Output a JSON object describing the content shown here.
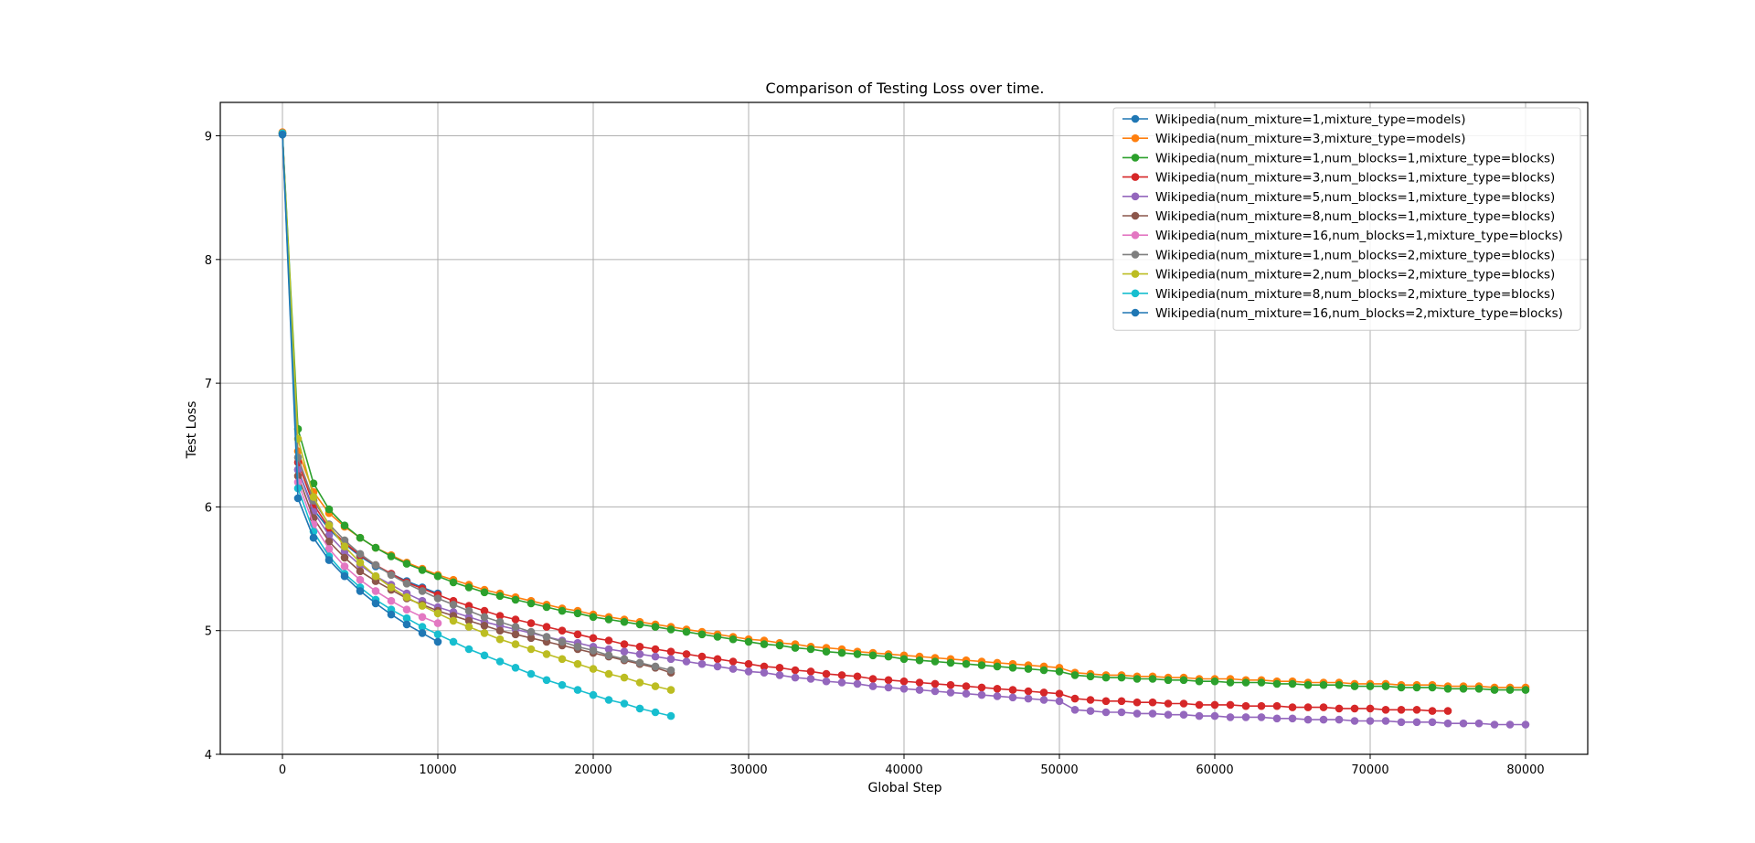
{
  "chart_data": {
    "type": "line",
    "title": "Comparison of Testing Loss over time.",
    "xlabel": "Global Step",
    "ylabel": "Test Loss",
    "xlim": [
      -4000,
      84000
    ],
    "ylim": [
      4,
      9.27
    ],
    "xticks": [
      0,
      10000,
      20000,
      30000,
      40000,
      50000,
      60000,
      70000,
      80000
    ],
    "yticks": [
      4,
      5,
      6,
      7,
      8,
      9
    ],
    "grid": true,
    "legend_position": "top-right",
    "series": [
      {
        "name": "Wikipedia(num_mixture=1,mixture_type=models)",
        "color": "#1f77b4",
        "x": [
          0,
          1000,
          2000,
          3000,
          4000,
          5000,
          6000,
          7000,
          8000,
          9000,
          10000
        ],
        "y": [
          9.02,
          6.3,
          5.98,
          5.82,
          5.7,
          5.6,
          5.52,
          5.46,
          5.4,
          5.35,
          5.3
        ]
      },
      {
        "name": "Wikipedia(num_mixture=3,mixture_type=models)",
        "color": "#ff7f0e",
        "x": [
          0,
          1000,
          2000,
          3000,
          4000,
          5000,
          6000,
          7000,
          8000,
          9000,
          10000,
          11000,
          12000,
          13000,
          14000,
          15000,
          16000,
          17000,
          18000,
          19000,
          20000,
          21000,
          22000,
          23000,
          24000,
          25000,
          26000,
          27000,
          28000,
          29000,
          30000,
          31000,
          32000,
          33000,
          34000,
          35000,
          36000,
          37000,
          38000,
          39000,
          40000,
          41000,
          42000,
          43000,
          44000,
          45000,
          46000,
          47000,
          48000,
          49000,
          50000,
          51000,
          52000,
          53000,
          54000,
          55000,
          56000,
          57000,
          58000,
          59000,
          60000,
          61000,
          62000,
          63000,
          64000,
          65000,
          66000,
          67000,
          68000,
          69000,
          70000,
          71000,
          72000,
          73000,
          74000,
          75000,
          76000,
          77000,
          78000,
          79000,
          80000
        ],
        "y": [
          9.03,
          6.45,
          6.12,
          5.95,
          5.84,
          5.75,
          5.67,
          5.61,
          5.55,
          5.5,
          5.45,
          5.41,
          5.37,
          5.33,
          5.3,
          5.27,
          5.24,
          5.21,
          5.18,
          5.16,
          5.13,
          5.11,
          5.09,
          5.07,
          5.05,
          5.03,
          5.01,
          4.99,
          4.97,
          4.95,
          4.93,
          4.92,
          4.9,
          4.89,
          4.87,
          4.86,
          4.85,
          4.83,
          4.82,
          4.81,
          4.8,
          4.79,
          4.78,
          4.77,
          4.76,
          4.75,
          4.74,
          4.73,
          4.72,
          4.71,
          4.7,
          4.66,
          4.65,
          4.64,
          4.64,
          4.63,
          4.63,
          4.62,
          4.62,
          4.61,
          4.61,
          4.61,
          4.6,
          4.6,
          4.59,
          4.59,
          4.58,
          4.58,
          4.58,
          4.57,
          4.57,
          4.57,
          4.56,
          4.56,
          4.56,
          4.55,
          4.55,
          4.55,
          4.54,
          4.54,
          4.54
        ]
      },
      {
        "name": "Wikipedia(num_mixture=1,num_blocks=1,mixture_type=blocks)",
        "color": "#2ca02c",
        "x": [
          0,
          1000,
          2000,
          3000,
          4000,
          5000,
          6000,
          7000,
          8000,
          9000,
          10000,
          11000,
          12000,
          13000,
          14000,
          15000,
          16000,
          17000,
          18000,
          19000,
          20000,
          21000,
          22000,
          23000,
          24000,
          25000,
          26000,
          27000,
          28000,
          29000,
          30000,
          31000,
          32000,
          33000,
          34000,
          35000,
          36000,
          37000,
          38000,
          39000,
          40000,
          41000,
          42000,
          43000,
          44000,
          45000,
          46000,
          47000,
          48000,
          49000,
          50000,
          51000,
          52000,
          53000,
          54000,
          55000,
          56000,
          57000,
          58000,
          59000,
          60000,
          61000,
          62000,
          63000,
          64000,
          65000,
          66000,
          67000,
          68000,
          69000,
          70000,
          71000,
          72000,
          73000,
          74000,
          75000,
          76000,
          77000,
          78000,
          79000,
          80000
        ],
        "y": [
          9.02,
          6.63,
          6.19,
          5.98,
          5.85,
          5.75,
          5.67,
          5.6,
          5.54,
          5.49,
          5.44,
          5.39,
          5.35,
          5.31,
          5.28,
          5.25,
          5.22,
          5.19,
          5.16,
          5.14,
          5.11,
          5.09,
          5.07,
          5.05,
          5.03,
          5.01,
          4.99,
          4.97,
          4.95,
          4.93,
          4.91,
          4.89,
          4.88,
          4.86,
          4.85,
          4.83,
          4.82,
          4.81,
          4.8,
          4.79,
          4.77,
          4.76,
          4.75,
          4.74,
          4.73,
          4.72,
          4.71,
          4.7,
          4.69,
          4.68,
          4.67,
          4.64,
          4.63,
          4.62,
          4.62,
          4.61,
          4.61,
          4.6,
          4.6,
          4.59,
          4.59,
          4.58,
          4.58,
          4.58,
          4.57,
          4.57,
          4.56,
          4.56,
          4.56,
          4.55,
          4.55,
          4.55,
          4.54,
          4.54,
          4.54,
          4.53,
          4.53,
          4.53,
          4.52,
          4.52,
          4.52
        ]
      },
      {
        "name": "Wikipedia(num_mixture=3,num_blocks=1,mixture_type=blocks)",
        "color": "#d62728",
        "x": [
          0,
          1000,
          2000,
          3000,
          4000,
          5000,
          6000,
          7000,
          8000,
          9000,
          10000,
          11000,
          12000,
          13000,
          14000,
          15000,
          16000,
          17000,
          18000,
          19000,
          20000,
          21000,
          22000,
          23000,
          24000,
          25000,
          26000,
          27000,
          28000,
          29000,
          30000,
          31000,
          32000,
          33000,
          34000,
          35000,
          36000,
          37000,
          38000,
          39000,
          40000,
          41000,
          42000,
          43000,
          44000,
          45000,
          46000,
          47000,
          48000,
          49000,
          50000,
          51000,
          52000,
          53000,
          54000,
          55000,
          56000,
          57000,
          58000,
          59000,
          60000,
          61000,
          62000,
          63000,
          64000,
          65000,
          66000,
          67000,
          68000,
          69000,
          70000,
          71000,
          72000,
          73000,
          74000,
          75000
        ],
        "y": [
          9.02,
          6.36,
          6.02,
          5.83,
          5.71,
          5.61,
          5.53,
          5.46,
          5.39,
          5.34,
          5.29,
          5.24,
          5.2,
          5.16,
          5.12,
          5.09,
          5.06,
          5.03,
          5.0,
          4.97,
          4.94,
          4.92,
          4.89,
          4.87,
          4.85,
          4.83,
          4.81,
          4.79,
          4.77,
          4.75,
          4.73,
          4.71,
          4.7,
          4.68,
          4.67,
          4.65,
          4.64,
          4.63,
          4.61,
          4.6,
          4.59,
          4.58,
          4.57,
          4.56,
          4.55,
          4.54,
          4.53,
          4.52,
          4.51,
          4.5,
          4.49,
          4.45,
          4.44,
          4.43,
          4.43,
          4.42,
          4.42,
          4.41,
          4.41,
          4.4,
          4.4,
          4.4,
          4.39,
          4.39,
          4.39,
          4.38,
          4.38,
          4.38,
          4.37,
          4.37,
          4.37,
          4.36,
          4.36,
          4.36,
          4.35,
          4.35
        ]
      },
      {
        "name": "Wikipedia(num_mixture=5,num_blocks=1,mixture_type=blocks)",
        "color": "#9467bd",
        "x": [
          0,
          1000,
          2000,
          3000,
          4000,
          5000,
          6000,
          7000,
          8000,
          9000,
          10000,
          11000,
          12000,
          13000,
          14000,
          15000,
          16000,
          17000,
          18000,
          19000,
          20000,
          21000,
          22000,
          23000,
          24000,
          25000,
          26000,
          27000,
          28000,
          29000,
          30000,
          31000,
          32000,
          33000,
          34000,
          35000,
          36000,
          37000,
          38000,
          39000,
          40000,
          41000,
          42000,
          43000,
          44000,
          45000,
          46000,
          47000,
          48000,
          49000,
          50000,
          51000,
          52000,
          53000,
          54000,
          55000,
          56000,
          57000,
          58000,
          59000,
          60000,
          61000,
          62000,
          63000,
          64000,
          65000,
          66000,
          67000,
          68000,
          69000,
          70000,
          71000,
          72000,
          73000,
          74000,
          75000,
          76000,
          77000,
          78000,
          79000,
          80000
        ],
        "y": [
          9.02,
          6.3,
          5.96,
          5.77,
          5.64,
          5.53,
          5.44,
          5.37,
          5.3,
          5.24,
          5.19,
          5.15,
          5.11,
          5.07,
          5.04,
          5.01,
          4.98,
          4.95,
          4.92,
          4.9,
          4.87,
          4.85,
          4.83,
          4.81,
          4.79,
          4.77,
          4.75,
          4.73,
          4.71,
          4.69,
          4.67,
          4.66,
          4.64,
          4.62,
          4.61,
          4.59,
          4.58,
          4.57,
          4.55,
          4.54,
          4.53,
          4.52,
          4.51,
          4.5,
          4.49,
          4.48,
          4.47,
          4.46,
          4.45,
          4.44,
          4.43,
          4.36,
          4.35,
          4.34,
          4.34,
          4.33,
          4.33,
          4.32,
          4.32,
          4.31,
          4.31,
          4.3,
          4.3,
          4.3,
          4.29,
          4.29,
          4.28,
          4.28,
          4.28,
          4.27,
          4.27,
          4.27,
          4.26,
          4.26,
          4.26,
          4.25,
          4.25,
          4.25,
          4.24,
          4.24,
          4.24
        ]
      },
      {
        "name": "Wikipedia(num_mixture=8,num_blocks=1,mixture_type=blocks)",
        "color": "#8c564b",
        "x": [
          0,
          1000,
          2000,
          3000,
          4000,
          5000,
          6000,
          7000,
          8000,
          9000,
          10000,
          11000,
          12000,
          13000,
          14000,
          15000,
          16000,
          17000,
          18000,
          19000,
          20000,
          21000,
          22000,
          23000,
          24000,
          25000
        ],
        "y": [
          9.02,
          6.25,
          5.91,
          5.72,
          5.59,
          5.48,
          5.4,
          5.33,
          5.26,
          5.21,
          5.16,
          5.12,
          5.08,
          5.04,
          5.0,
          4.97,
          4.94,
          4.91,
          4.88,
          4.85,
          4.82,
          4.79,
          4.76,
          4.73,
          4.7,
          4.66
        ]
      },
      {
        "name": "Wikipedia(num_mixture=16,num_blocks=1,mixture_type=blocks)",
        "color": "#e377c2",
        "x": [
          0,
          1000,
          2000,
          3000,
          4000,
          5000,
          6000,
          7000,
          8000,
          9000,
          10000
        ],
        "y": [
          9.02,
          6.2,
          5.86,
          5.66,
          5.52,
          5.41,
          5.32,
          5.24,
          5.17,
          5.11,
          5.06
        ]
      },
      {
        "name": "Wikipedia(num_mixture=1,num_blocks=2,mixture_type=blocks)",
        "color": "#7f7f7f",
        "x": [
          0,
          1000,
          2000,
          3000,
          4000,
          5000,
          6000,
          7000,
          8000,
          9000,
          10000,
          11000,
          12000,
          13000,
          14000,
          15000,
          16000,
          17000,
          18000,
          19000,
          20000,
          21000,
          22000,
          23000,
          24000,
          25000
        ],
        "y": [
          9.02,
          6.4,
          6.05,
          5.86,
          5.73,
          5.62,
          5.53,
          5.45,
          5.38,
          5.32,
          5.26,
          5.21,
          5.16,
          5.11,
          5.07,
          5.03,
          4.99,
          4.95,
          4.91,
          4.87,
          4.84,
          4.8,
          4.77,
          4.74,
          4.71,
          4.68
        ]
      },
      {
        "name": "Wikipedia(num_mixture=2,num_blocks=2,mixture_type=blocks)",
        "color": "#bcbd22",
        "x": [
          0,
          1000,
          2000,
          3000,
          4000,
          5000,
          6000,
          7000,
          8000,
          9000,
          10000,
          11000,
          12000,
          13000,
          14000,
          15000,
          16000,
          17000,
          18000,
          19000,
          20000,
          21000,
          22000,
          23000,
          24000,
          25000
        ],
        "y": [
          9.02,
          6.55,
          6.08,
          5.85,
          5.68,
          5.55,
          5.44,
          5.35,
          5.27,
          5.2,
          5.14,
          5.08,
          5.03,
          4.98,
          4.93,
          4.89,
          4.85,
          4.81,
          4.77,
          4.73,
          4.69,
          4.65,
          4.62,
          4.58,
          4.55,
          4.52
        ]
      },
      {
        "name": "Wikipedia(num_mixture=8,num_blocks=2,mixture_type=blocks)",
        "color": "#17becf",
        "x": [
          0,
          1000,
          2000,
          3000,
          4000,
          5000,
          6000,
          7000,
          8000,
          9000,
          10000,
          11000,
          12000,
          13000,
          14000,
          15000,
          16000,
          17000,
          18000,
          19000,
          20000,
          21000,
          22000,
          23000,
          24000,
          25000
        ],
        "y": [
          9.02,
          6.15,
          5.8,
          5.6,
          5.46,
          5.35,
          5.25,
          5.17,
          5.1,
          5.03,
          4.97,
          4.91,
          4.85,
          4.8,
          4.75,
          4.7,
          4.65,
          4.6,
          4.56,
          4.52,
          4.48,
          4.44,
          4.41,
          4.37,
          4.34,
          4.31
        ]
      },
      {
        "name": "Wikipedia(num_mixture=16,num_blocks=2,mixture_type=blocks)",
        "color": "#1f77b4",
        "x": [
          0,
          1000,
          2000,
          3000,
          4000,
          5000,
          6000,
          7000,
          8000,
          9000,
          10000
        ],
        "y": [
          9.01,
          6.07,
          5.75,
          5.57,
          5.44,
          5.32,
          5.22,
          5.13,
          5.05,
          4.98,
          4.91
        ]
      }
    ]
  }
}
